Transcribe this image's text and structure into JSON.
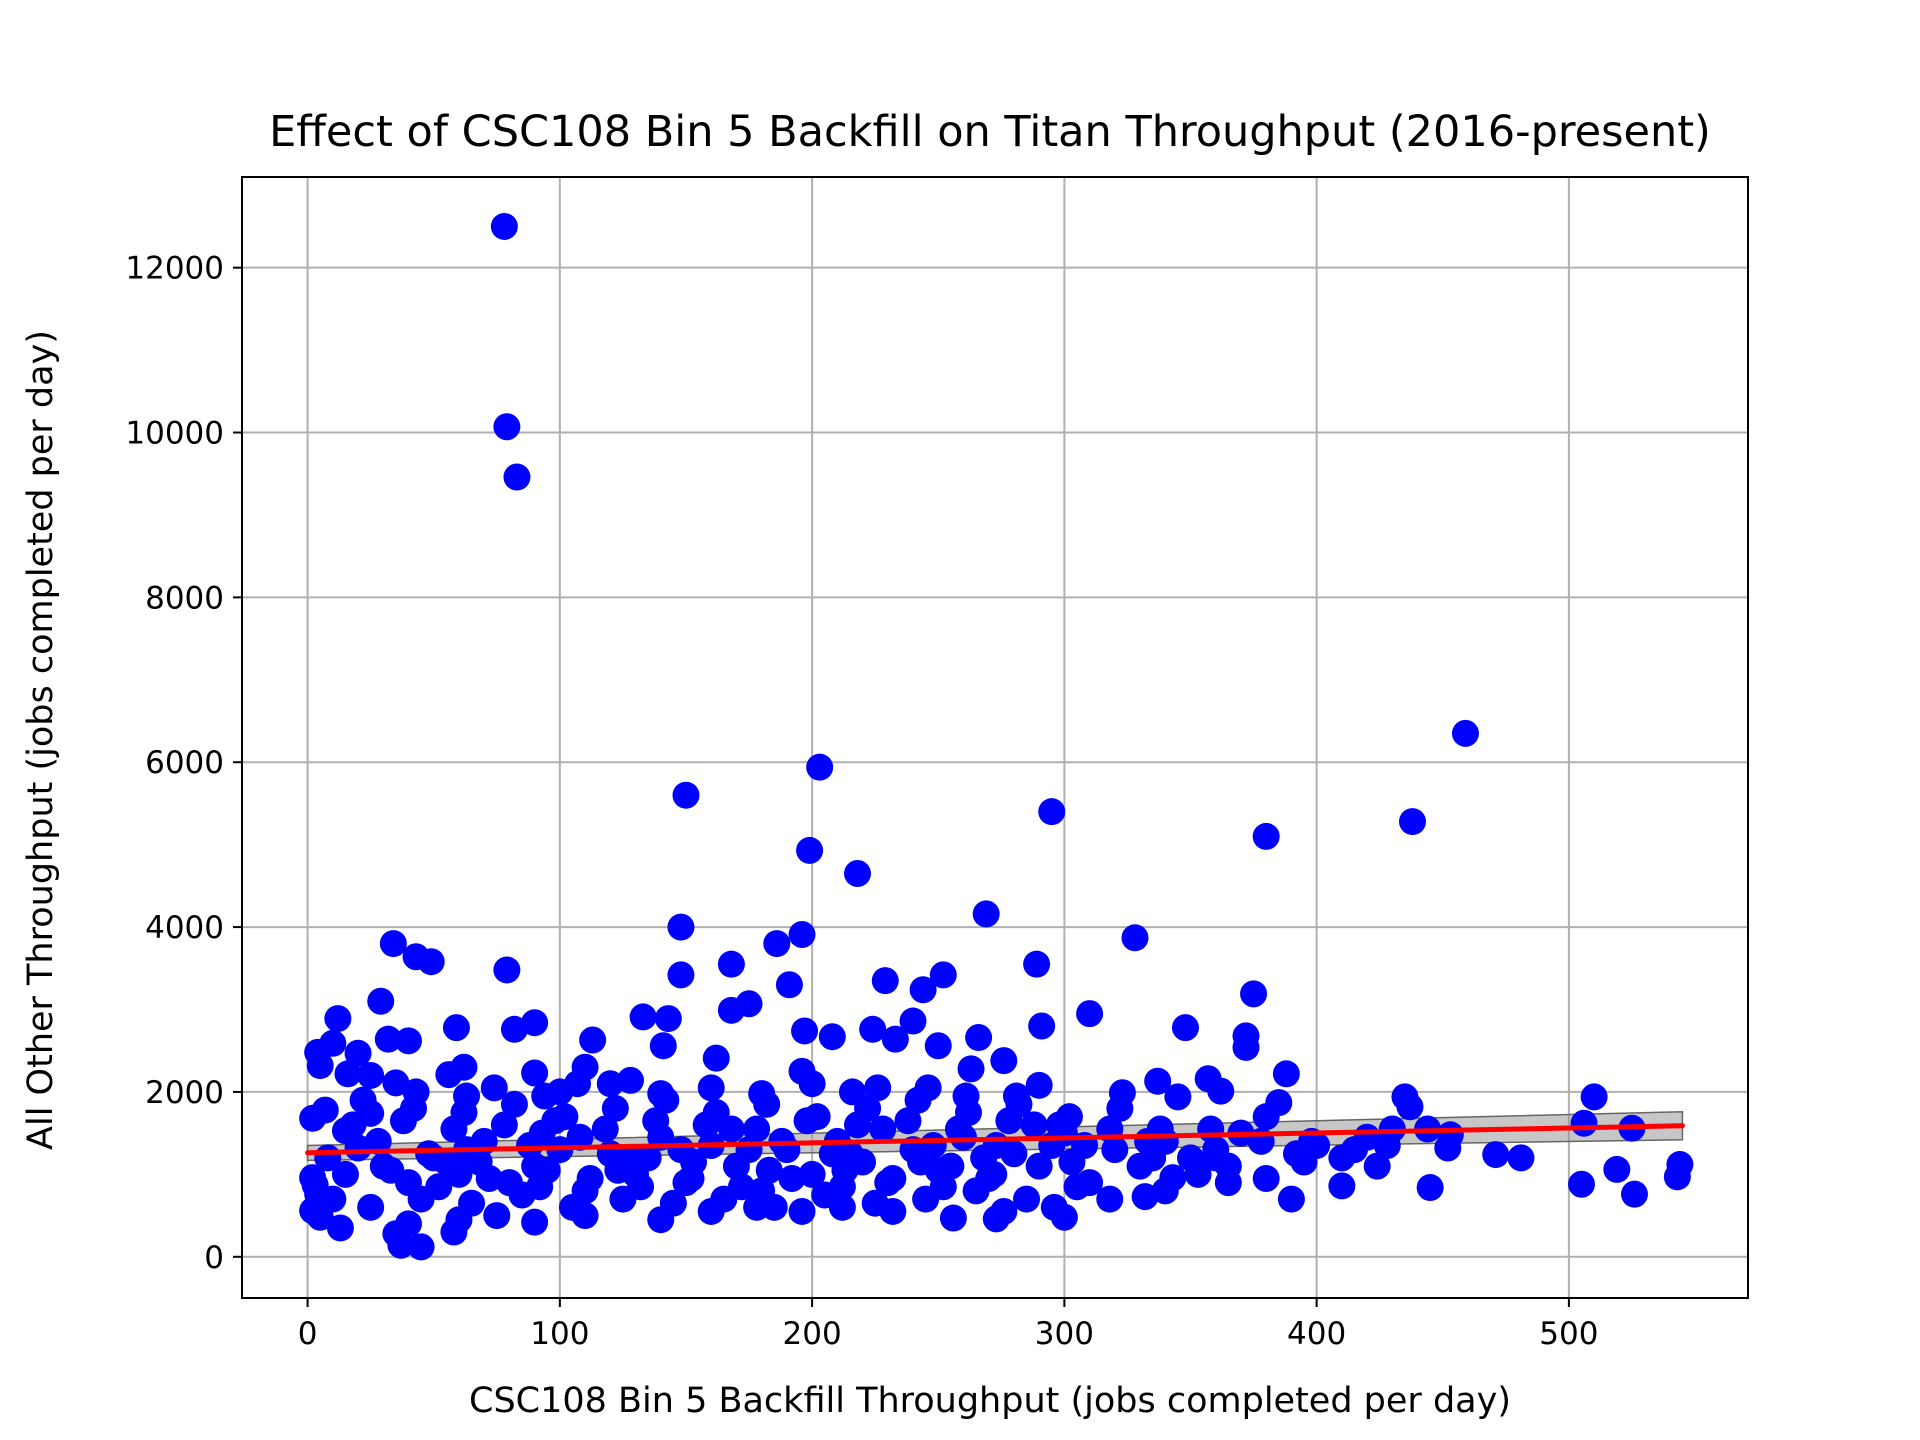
{
  "chart_data": {
    "type": "scatter",
    "title": "Effect of CSC108 Bin 5 Backfill on Titan Throughput (2016-present)",
    "xlabel": "CSC108 Bin 5 Backfill Throughput (jobs completed per day)",
    "ylabel": "All Other Throughput (jobs completed per day)",
    "xlim": [
      -26,
      571
    ],
    "ylim": [
      -500,
      13100
    ],
    "x_ticks": [
      0,
      100,
      200,
      300,
      400,
      500
    ],
    "y_ticks": [
      0,
      2000,
      4000,
      6000,
      8000,
      10000,
      12000
    ],
    "grid": true,
    "colors": {
      "points": "#0000ff",
      "fit_line": "#ff0000",
      "confidence_band": "#999999",
      "grid": "#b0b0b0"
    },
    "series": [
      {
        "type": "scatter",
        "points": [
          [
            78,
            12500
          ],
          [
            79,
            10070
          ],
          [
            83,
            9460
          ],
          [
            459,
            6350
          ],
          [
            203,
            5940
          ],
          [
            150,
            5600
          ],
          [
            295,
            5400
          ],
          [
            199,
            4930
          ],
          [
            438,
            5280
          ],
          [
            380,
            5100
          ],
          [
            218,
            4650
          ],
          [
            269,
            4160
          ],
          [
            148,
            4000
          ],
          [
            328,
            3870
          ],
          [
            196,
            3910
          ],
          [
            186,
            3800
          ],
          [
            34,
            3800
          ],
          [
            43,
            3640
          ],
          [
            49,
            3580
          ],
          [
            79,
            3480
          ],
          [
            168,
            3550
          ],
          [
            289,
            3550
          ],
          [
            148,
            3420
          ],
          [
            252,
            3420
          ],
          [
            191,
            3300
          ],
          [
            229,
            3350
          ],
          [
            244,
            3240
          ],
          [
            375,
            3190
          ],
          [
            175,
            3070
          ],
          [
            29,
            3100
          ],
          [
            168,
            2990
          ],
          [
            310,
            2950
          ],
          [
            90,
            2840
          ],
          [
            133,
            2910
          ],
          [
            143,
            2890
          ],
          [
            12,
            2890
          ],
          [
            240,
            2860
          ],
          [
            82,
            2760
          ],
          [
            197,
            2740
          ],
          [
            224,
            2760
          ],
          [
            291,
            2800
          ],
          [
            348,
            2780
          ],
          [
            59,
            2780
          ],
          [
            113,
            2630
          ],
          [
            208,
            2670
          ],
          [
            266,
            2660
          ],
          [
            372,
            2680
          ],
          [
            32,
            2640
          ],
          [
            40,
            2620
          ],
          [
            10,
            2590
          ],
          [
            141,
            2560
          ],
          [
            233,
            2640
          ],
          [
            250,
            2560
          ],
          [
            4,
            2480
          ],
          [
            20,
            2470
          ],
          [
            372,
            2540
          ],
          [
            5,
            2320
          ],
          [
            162,
            2410
          ],
          [
            276,
            2380
          ],
          [
            16,
            2220
          ],
          [
            388,
            2220
          ],
          [
            56,
            2210
          ],
          [
            62,
            2300
          ],
          [
            90,
            2230
          ],
          [
            110,
            2300
          ],
          [
            196,
            2250
          ],
          [
            25,
            2200
          ],
          [
            263,
            2280
          ],
          [
            357,
            2160
          ],
          [
            337,
            2130
          ],
          [
            35,
            2110
          ],
          [
            128,
            2140
          ],
          [
            290,
            2080
          ],
          [
            323,
            1990
          ],
          [
            435,
            1940
          ],
          [
            345,
            1940
          ],
          [
            362,
            2010
          ],
          [
            510,
            1940
          ],
          [
            385,
            1870
          ],
          [
            437,
            1820
          ],
          [
            380,
            1700
          ],
          [
            506,
            1620
          ],
          [
            525,
            1560
          ],
          [
            2,
            1680
          ],
          [
            7,
            1780
          ],
          [
            25,
            1740
          ],
          [
            444,
            1550
          ],
          [
            453,
            1480
          ],
          [
            378,
            1400
          ],
          [
            392,
            1250
          ],
          [
            410,
            1200
          ],
          [
            424,
            1100
          ],
          [
            452,
            1320
          ],
          [
            471,
            1240
          ],
          [
            481,
            1200
          ],
          [
            519,
            1060
          ],
          [
            544,
            1120
          ],
          [
            505,
            880
          ],
          [
            526,
            760
          ],
          [
            543,
            970
          ],
          [
            445,
            840
          ],
          [
            410,
            860
          ],
          [
            390,
            700
          ],
          [
            365,
            900
          ],
          [
            343,
            960
          ],
          [
            332,
            730
          ],
          [
            300,
            480
          ],
          [
            273,
            460
          ],
          [
            256,
            470
          ],
          [
            45,
            120
          ],
          [
            37,
            140
          ],
          [
            58,
            300
          ],
          [
            13,
            350
          ],
          [
            35,
            280
          ],
          [
            90,
            420
          ],
          [
            2,
            560
          ],
          [
            5,
            480
          ],
          [
            2,
            960
          ],
          [
            3,
            870
          ],
          [
            4,
            760
          ],
          [
            15,
            1530
          ],
          [
            20,
            1320
          ],
          [
            30,
            1100
          ],
          [
            40,
            900
          ],
          [
            50,
            1200
          ],
          [
            60,
            1000
          ],
          [
            70,
            1400
          ],
          [
            80,
            900
          ],
          [
            90,
            1100
          ],
          [
            100,
            1300
          ],
          [
            110,
            800
          ],
          [
            120,
            1250
          ],
          [
            130,
            1000
          ],
          [
            140,
            1450
          ],
          [
            150,
            900
          ],
          [
            160,
            1350
          ],
          [
            170,
            1100
          ],
          [
            180,
            800
          ],
          [
            190,
            1300
          ],
          [
            200,
            1000
          ],
          [
            210,
            1400
          ],
          [
            220,
            1150
          ],
          [
            230,
            900
          ],
          [
            240,
            1300
          ],
          [
            250,
            1050
          ],
          [
            260,
            1450
          ],
          [
            270,
            950
          ],
          [
            280,
            1250
          ],
          [
            290,
            1100
          ],
          [
            300,
            1500
          ],
          [
            310,
            900
          ],
          [
            320,
            1300
          ],
          [
            330,
            1100
          ],
          [
            340,
            1400
          ],
          [
            350,
            1200
          ],
          [
            360,
            1300
          ],
          [
            370,
            1500
          ],
          [
            25,
            600
          ],
          [
            45,
            700
          ],
          [
            65,
            650
          ],
          [
            85,
            750
          ],
          [
            105,
            600
          ],
          [
            125,
            700
          ],
          [
            145,
            650
          ],
          [
            165,
            700
          ],
          [
            185,
            600
          ],
          [
            205,
            750
          ],
          [
            225,
            650
          ],
          [
            245,
            700
          ],
          [
            265,
            800
          ],
          [
            285,
            700
          ],
          [
            305,
            850
          ],
          [
            22,
            1900
          ],
          [
            42,
            1800
          ],
          [
            62,
            1750
          ],
          [
            82,
            1850
          ],
          [
            102,
            1700
          ],
          [
            122,
            1800
          ],
          [
            142,
            1900
          ],
          [
            162,
            1750
          ],
          [
            182,
            1850
          ],
          [
            202,
            1700
          ],
          [
            222,
            1800
          ],
          [
            242,
            1900
          ],
          [
            262,
            1750
          ],
          [
            282,
            1850
          ],
          [
            302,
            1700
          ],
          [
            322,
            1800
          ],
          [
            15,
            1000
          ],
          [
            55,
            1150
          ],
          [
            95,
            1050
          ],
          [
            135,
            1200
          ],
          [
            175,
            1300
          ],
          [
            215,
            1250
          ],
          [
            255,
            1100
          ],
          [
            295,
            1350
          ],
          [
            335,
            1200
          ],
          [
            365,
            1100
          ],
          [
            400,
            1350
          ],
          [
            420,
            1450
          ],
          [
            8,
            1200
          ],
          [
            28,
            1400
          ],
          [
            48,
            1250
          ],
          [
            68,
            1150
          ],
          [
            88,
            1350
          ],
          [
            108,
            1450
          ],
          [
            128,
            1200
          ],
          [
            148,
            1300
          ],
          [
            168,
            1550
          ],
          [
            188,
            1400
          ],
          [
            208,
            1250
          ],
          [
            228,
            1550
          ],
          [
            248,
            1350
          ],
          [
            268,
            1200
          ],
          [
            288,
            1600
          ],
          [
            308,
            1350
          ],
          [
            52,
            850
          ],
          [
            72,
            950
          ],
          [
            92,
            850
          ],
          [
            112,
            950
          ],
          [
            132,
            850
          ],
          [
            152,
            950
          ],
          [
            172,
            850
          ],
          [
            192,
            950
          ],
          [
            212,
            850
          ],
          [
            232,
            950
          ],
          [
            252,
            850
          ],
          [
            272,
            1000
          ],
          [
            18,
            1600
          ],
          [
            38,
            1650
          ],
          [
            58,
            1550
          ],
          [
            78,
            1600
          ],
          [
            98,
            1650
          ],
          [
            118,
            1550
          ],
          [
            138,
            1650
          ],
          [
            158,
            1600
          ],
          [
            178,
            1550
          ],
          [
            198,
            1650
          ],
          [
            218,
            1600
          ],
          [
            238,
            1650
          ],
          [
            258,
            1550
          ],
          [
            278,
            1650
          ],
          [
            298,
            1600
          ],
          [
            318,
            1550
          ],
          [
            338,
            1550
          ],
          [
            358,
            1550
          ],
          [
            398,
            1400
          ],
          [
            428,
            1350
          ],
          [
            33,
            1050
          ],
          [
            63,
            1300
          ],
          [
            93,
            1500
          ],
          [
            123,
            1050
          ],
          [
            153,
            1150
          ],
          [
            183,
            1050
          ],
          [
            213,
            1050
          ],
          [
            243,
            1150
          ],
          [
            273,
            1350
          ],
          [
            303,
            1150
          ],
          [
            333,
            1400
          ],
          [
            10,
            700
          ],
          [
            100,
            2000
          ],
          [
            120,
            2100
          ],
          [
            140,
            1980
          ],
          [
            160,
            2050
          ],
          [
            180,
            1980
          ],
          [
            200,
            2100
          ],
          [
            216,
            2000
          ],
          [
            226,
            2050
          ],
          [
            246,
            2050
          ],
          [
            261,
            1950
          ],
          [
            281,
            1950
          ],
          [
            43,
            2000
          ],
          [
            63,
            1950
          ],
          [
            74,
            2050
          ],
          [
            94,
            1950
          ],
          [
            107,
            2100
          ],
          [
            40,
            400
          ],
          [
            60,
            450
          ],
          [
            75,
            500
          ],
          [
            110,
            500
          ],
          [
            140,
            450
          ],
          [
            160,
            550
          ],
          [
            178,
            600
          ],
          [
            196,
            550
          ],
          [
            212,
            600
          ],
          [
            232,
            550
          ],
          [
            276,
            550
          ],
          [
            296,
            600
          ],
          [
            318,
            700
          ],
          [
            340,
            800
          ],
          [
            353,
            1000
          ],
          [
            360,
            1200
          ],
          [
            380,
            950
          ],
          [
            395,
            1150
          ],
          [
            430,
            1550
          ],
          [
            415,
            1300
          ]
        ]
      },
      {
        "type": "regression_line",
        "points": [
          [
            0,
            1262
          ],
          [
            545,
            1590
          ]
        ],
        "band_lower": [
          [
            0,
            1170
          ],
          [
            545,
            1420
          ]
        ],
        "band_upper": [
          [
            0,
            1350
          ],
          [
            545,
            1760
          ]
        ]
      }
    ]
  }
}
